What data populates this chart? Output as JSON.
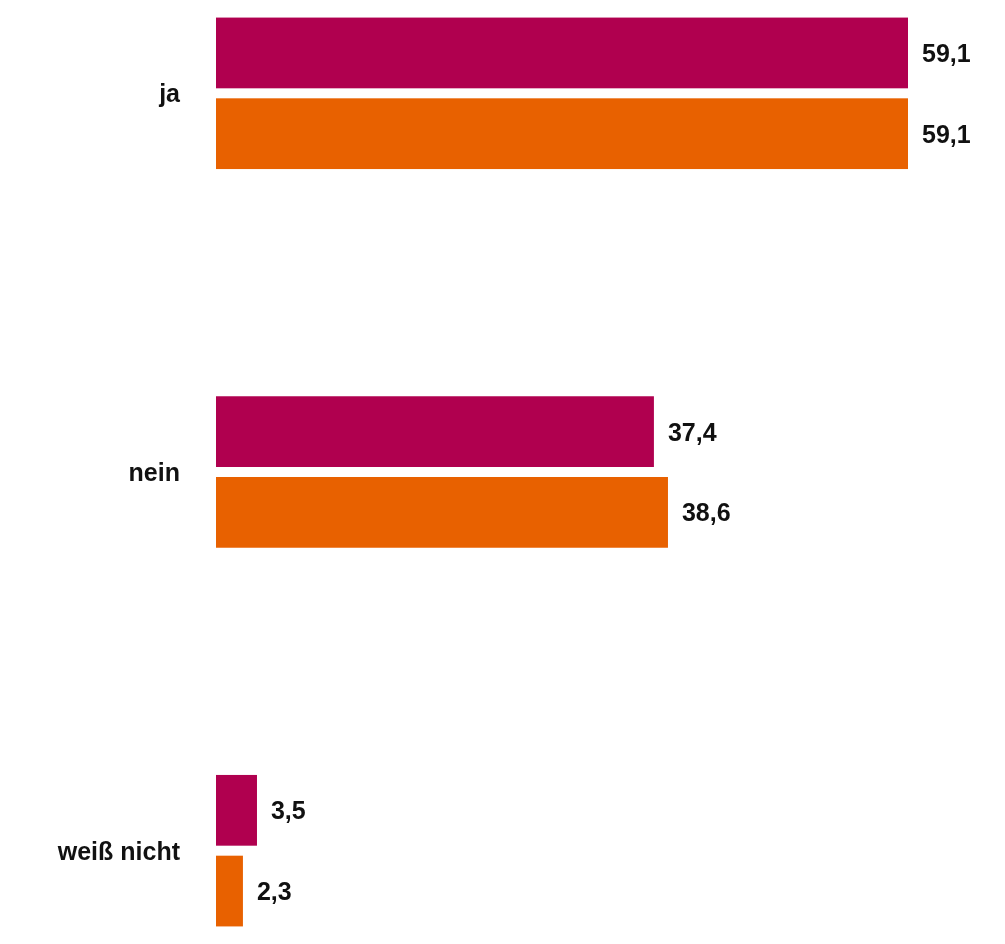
{
  "chart_data": {
    "type": "bar",
    "orientation": "horizontal",
    "categories": [
      "ja",
      "nein",
      "weiß nicht"
    ],
    "series": [
      {
        "color": "#b0004f",
        "values": [
          59.1,
          37.4,
          3.5
        ],
        "value_labels": [
          "59,1",
          "37,4",
          "3,5"
        ]
      },
      {
        "color": "#e86100",
        "values": [
          59.1,
          38.6,
          2.3
        ],
        "value_labels": [
          "59,1",
          "38,6",
          "2,3"
        ]
      }
    ]
  }
}
